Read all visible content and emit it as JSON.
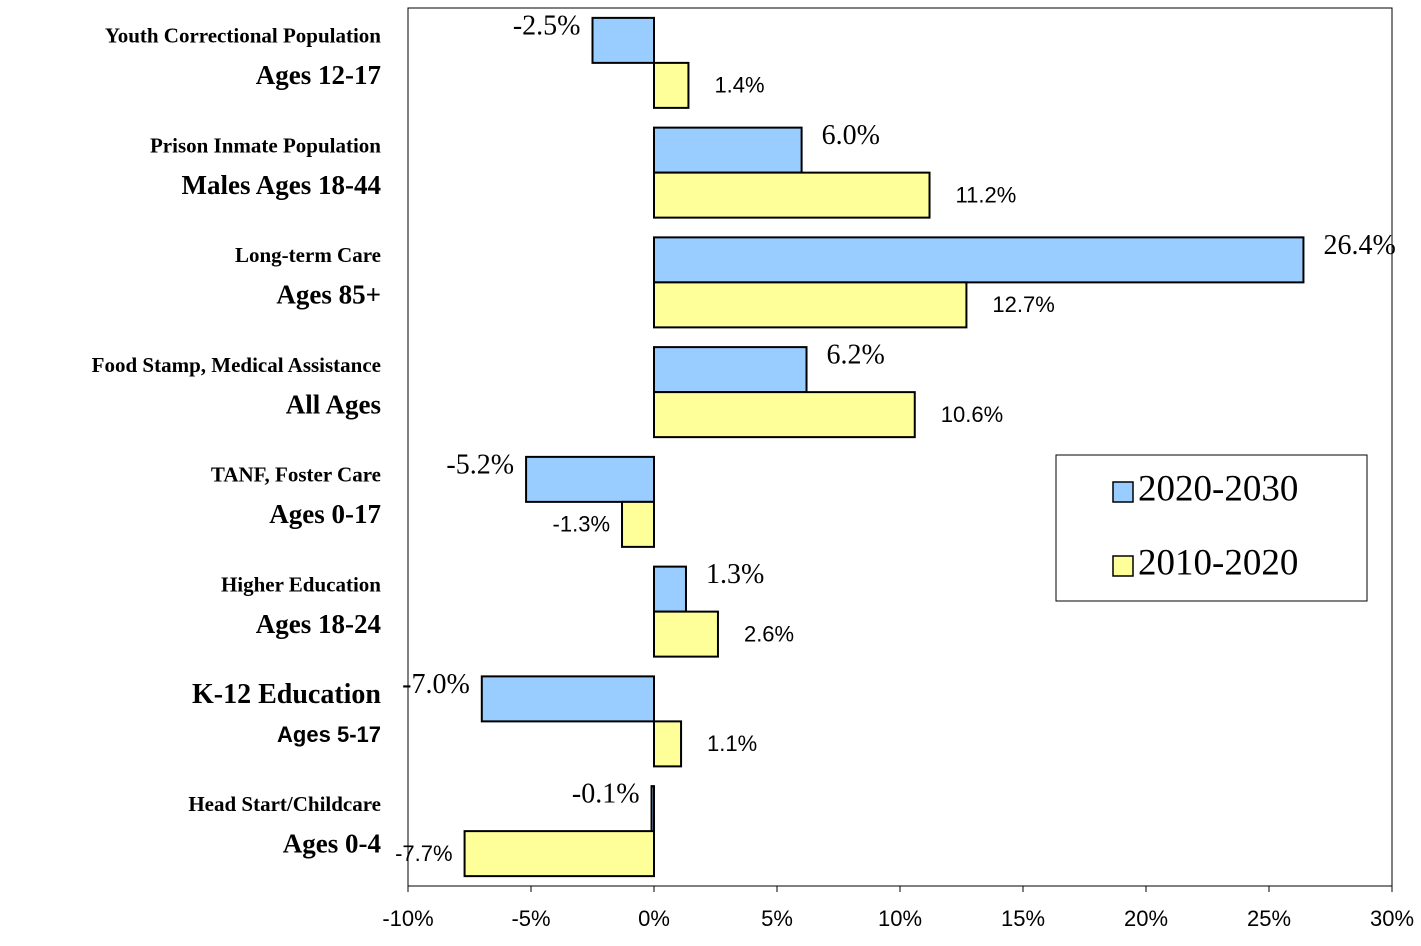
{
  "chart_data": {
    "type": "bar",
    "orientation": "horizontal",
    "categories": [
      [
        "Youth Correctional Population",
        "Ages 12-17"
      ],
      [
        "Prison Inmate Population",
        "Males Ages 18-44"
      ],
      [
        "Long-term Care",
        "Ages 85+"
      ],
      [
        "Food Stamp, Medical Assistance",
        "All Ages"
      ],
      [
        "TANF, Foster Care",
        "Ages 0-17"
      ],
      [
        "Higher Education",
        "Ages 18-24"
      ],
      [
        "K-12 Education",
        "Ages 5-17"
      ],
      [
        "Head Start/Childcare",
        "Ages 0-4"
      ]
    ],
    "series": [
      {
        "name": "2020-2030",
        "color": "#99ccff",
        "values": [
          -2.5,
          6.0,
          26.4,
          6.2,
          -5.2,
          1.3,
          -7.0,
          -0.1
        ],
        "value_labels": [
          "-2.5%",
          "6.0%",
          "26.4%",
          "6.2%",
          "-5.2%",
          "1.3%",
          "-7.0%",
          "-0.1%"
        ]
      },
      {
        "name": "2010-2020",
        "color": "#ffff99",
        "values": [
          1.4,
          11.2,
          12.7,
          10.6,
          -1.3,
          2.6,
          1.1,
          -7.7
        ],
        "value_labels": [
          "1.4%",
          "11.2%",
          "12.7%",
          "10.6%",
          "-1.3%",
          "2.6%",
          "1.1%",
          "-7.7%"
        ]
      }
    ],
    "xlim": [
      -10,
      30
    ],
    "xticks": [
      {
        "value": -10,
        "label": "-10%"
      },
      {
        "value": -5,
        "label": "-5%"
      },
      {
        "value": 0,
        "label": "0%"
      },
      {
        "value": 5,
        "label": "5%"
      },
      {
        "value": 10,
        "label": "10%"
      },
      {
        "value": 15,
        "label": "15%"
      },
      {
        "value": 20,
        "label": "20%"
      },
      {
        "value": 25,
        "label": "25%"
      },
      {
        "value": 30,
        "label": "30%"
      }
    ],
    "legend": "right"
  }
}
